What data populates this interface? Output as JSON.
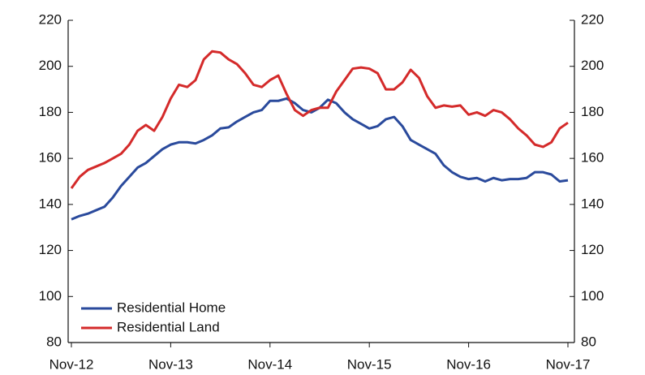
{
  "chart_data": {
    "type": "line",
    "categories": [
      "Nov-12",
      null,
      null,
      null,
      null,
      null,
      null,
      null,
      null,
      null,
      null,
      null,
      "Nov-13",
      null,
      null,
      null,
      null,
      null,
      null,
      null,
      null,
      null,
      null,
      null,
      "Nov-14",
      null,
      null,
      null,
      null,
      null,
      null,
      null,
      null,
      null,
      null,
      null,
      "Nov-15",
      null,
      null,
      null,
      null,
      null,
      null,
      null,
      null,
      null,
      null,
      null,
      "Nov-16",
      null,
      null,
      null,
      null,
      null,
      null,
      null,
      null,
      null,
      null,
      null,
      "Nov-17"
    ],
    "series": [
      {
        "name": "Residential Home",
        "color": "#2a4a9c",
        "values": [
          133.5,
          135,
          136,
          137.5,
          139,
          143,
          148,
          152,
          156,
          158,
          161,
          164,
          166,
          167,
          167,
          166.5,
          168,
          170,
          173,
          173.5,
          176,
          178,
          180,
          181,
          185,
          185,
          186,
          184,
          181,
          180,
          182,
          185.5,
          184,
          180,
          177,
          175,
          173,
          174,
          177,
          178,
          174,
          168,
          166,
          164,
          162,
          157,
          154,
          152,
          151,
          151.5,
          150,
          151.5,
          150.5,
          151,
          151,
          151.5,
          154,
          154,
          153,
          150,
          150.5
        ]
      },
      {
        "name": "Residential Land",
        "color": "#d42a2a",
        "values": [
          147,
          152,
          155,
          156.5,
          158,
          160,
          162,
          166,
          172,
          174.5,
          172,
          178,
          186,
          192,
          191,
          194,
          203,
          206.5,
          206,
          203,
          201,
          197,
          192,
          191,
          194,
          196,
          188,
          181,
          178.5,
          181,
          182,
          182,
          189,
          194,
          199,
          199.5,
          199,
          197,
          190,
          190,
          193,
          198.5,
          195,
          187,
          182,
          183,
          182.5,
          183,
          179,
          180,
          178.5,
          181,
          180,
          177,
          173,
          170,
          166,
          165,
          167,
          173,
          175.5
        ]
      }
    ],
    "ylim": [
      80,
      220
    ],
    "yticks": [
      80,
      100,
      120,
      140,
      160,
      180,
      200,
      220
    ],
    "y2lim": [
      80,
      220
    ],
    "y2ticks": [
      80,
      100,
      120,
      140,
      160,
      180,
      200,
      220
    ],
    "legend": "lower left"
  }
}
